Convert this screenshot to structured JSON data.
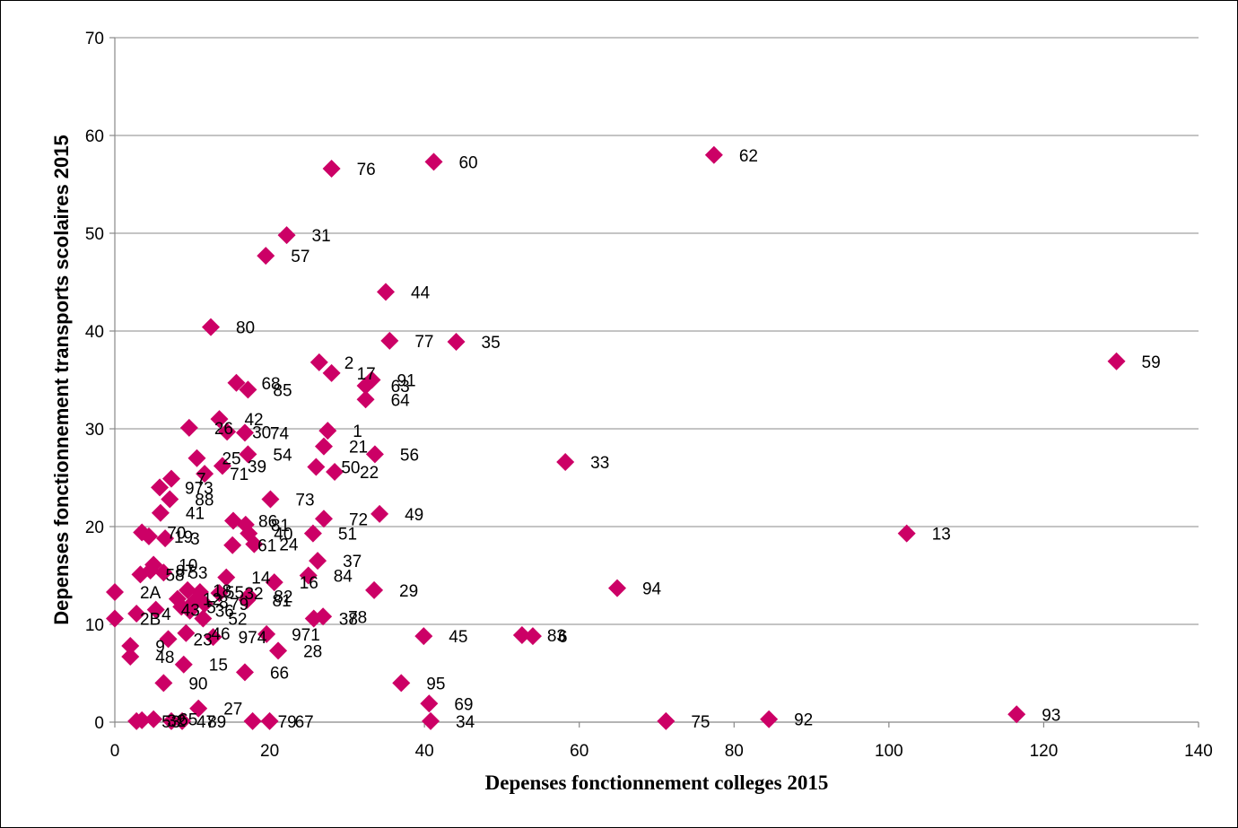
{
  "chart_data": {
    "type": "scatter",
    "xlabel": "Depenses fonctionnement colleges 2015",
    "ylabel": "Depenses fonctionnement transports scolaires 2015",
    "xlim": [
      0,
      140
    ],
    "ylim": [
      0,
      70
    ],
    "x_ticks": [
      0,
      20,
      40,
      60,
      80,
      100,
      120,
      140
    ],
    "y_ticks": [
      0,
      10,
      20,
      30,
      40,
      50,
      60,
      70
    ],
    "grid": "horizontal",
    "marker": "diamond",
    "marker_color": "#cc0066",
    "points": [
      {
        "label": "62",
        "x": 77.4,
        "y": 58.0
      },
      {
        "label": "60",
        "x": 41.2,
        "y": 57.3
      },
      {
        "label": "76",
        "x": 28.0,
        "y": 56.6
      },
      {
        "label": "31",
        "x": 22.2,
        "y": 49.8
      },
      {
        "label": "57",
        "x": 19.5,
        "y": 47.7
      },
      {
        "label": "44",
        "x": 35.0,
        "y": 44.0
      },
      {
        "label": "80",
        "x": 12.4,
        "y": 40.4
      },
      {
        "label": "77",
        "x": 35.5,
        "y": 39.0
      },
      {
        "label": "35",
        "x": 44.1,
        "y": 38.9
      },
      {
        "label": "59",
        "x": 129.4,
        "y": 36.9
      },
      {
        "label": "2",
        "x": 26.4,
        "y": 36.8
      },
      {
        "label": "17",
        "x": 28.0,
        "y": 35.7
      },
      {
        "label": "91",
        "x": 33.2,
        "y": 35.0
      },
      {
        "label": "63",
        "x": 32.4,
        "y": 34.4
      },
      {
        "label": "64",
        "x": 32.4,
        "y": 33.0
      },
      {
        "label": "68",
        "x": 15.7,
        "y": 34.7
      },
      {
        "label": "85",
        "x": 17.2,
        "y": 34.0
      },
      {
        "label": "42",
        "x": 13.5,
        "y": 31.0
      },
      {
        "label": "26",
        "x": 9.6,
        "y": 30.1
      },
      {
        "label": "30",
        "x": 14.5,
        "y": 29.7
      },
      {
        "label": "74",
        "x": 16.8,
        "y": 29.6
      },
      {
        "label": "1",
        "x": 27.5,
        "y": 29.8
      },
      {
        "label": "21",
        "x": 27.0,
        "y": 28.2
      },
      {
        "label": "56",
        "x": 33.6,
        "y": 27.4
      },
      {
        "label": "54",
        "x": 17.2,
        "y": 27.4
      },
      {
        "label": "33",
        "x": 58.2,
        "y": 26.6
      },
      {
        "label": "25",
        "x": 10.6,
        "y": 27.0
      },
      {
        "label": "39",
        "x": 13.9,
        "y": 26.2
      },
      {
        "label": "50",
        "x": 26.0,
        "y": 26.1
      },
      {
        "label": "22",
        "x": 28.4,
        "y": 25.6
      },
      {
        "label": "71",
        "x": 11.6,
        "y": 25.4
      },
      {
        "label": "7",
        "x": 7.3,
        "y": 24.9
      },
      {
        "label": "973",
        "x": 5.8,
        "y": 24.0
      },
      {
        "label": "88",
        "x": 7.1,
        "y": 22.8
      },
      {
        "label": "73",
        "x": 20.1,
        "y": 22.8
      },
      {
        "label": "41",
        "x": 5.9,
        "y": 21.4
      },
      {
        "label": "49",
        "x": 34.2,
        "y": 21.3
      },
      {
        "label": "72",
        "x": 27.0,
        "y": 20.8
      },
      {
        "label": "86",
        "x": 15.3,
        "y": 20.6
      },
      {
        "label": "81",
        "x": 16.9,
        "y": 20.2
      },
      {
        "label": "40",
        "x": 17.3,
        "y": 19.3
      },
      {
        "label": "51",
        "x": 25.6,
        "y": 19.3
      },
      {
        "label": "13",
        "x": 102.3,
        "y": 19.3
      },
      {
        "label": "70",
        "x": 3.5,
        "y": 19.4
      },
      {
        "label": "19",
        "x": 4.4,
        "y": 19.0
      },
      {
        "label": "3",
        "x": 6.5,
        "y": 18.8
      },
      {
        "label": "61",
        "x": 15.2,
        "y": 18.1
      },
      {
        "label": "24",
        "x": 18.0,
        "y": 18.2
      },
      {
        "label": "37",
        "x": 26.2,
        "y": 16.5
      },
      {
        "label": "10",
        "x": 5.0,
        "y": 16.1
      },
      {
        "label": "58",
        "x": 3.3,
        "y": 15.1
      },
      {
        "label": "87",
        "x": 4.6,
        "y": 15.5
      },
      {
        "label": "53",
        "x": 6.3,
        "y": 15.3
      },
      {
        "label": "84",
        "x": 25.0,
        "y": 15.0
      },
      {
        "label": "14",
        "x": 14.4,
        "y": 14.8
      },
      {
        "label": "16",
        "x": 20.6,
        "y": 14.3
      },
      {
        "label": "29",
        "x": 33.5,
        "y": 13.5
      },
      {
        "label": "94",
        "x": 64.9,
        "y": 13.7
      },
      {
        "label": "2A",
        "x": 0.0,
        "y": 13.3
      },
      {
        "label": "18",
        "x": 9.4,
        "y": 13.5
      },
      {
        "label": "12",
        "x": 8.1,
        "y": 12.6
      },
      {
        "label": "55",
        "x": 11.0,
        "y": 13.3
      },
      {
        "label": "32",
        "x": 13.5,
        "y": 13.2
      },
      {
        "label": "8",
        "x": 10.2,
        "y": 12.3
      },
      {
        "label": "79",
        "x": 11.6,
        "y": 12.1
      },
      {
        "label": "82",
        "x": 17.3,
        "y": 12.9
      },
      {
        "label": "81",
        "x": 17.1,
        "y": 12.5
      },
      {
        "label": "2B",
        "x": 0.0,
        "y": 10.6
      },
      {
        "label": "4",
        "x": 2.8,
        "y": 11.1
      },
      {
        "label": "43",
        "x": 5.3,
        "y": 11.5
      },
      {
        "label": "5",
        "x": 8.6,
        "y": 11.8
      },
      {
        "label": "36",
        "x": 9.7,
        "y": 11.4
      },
      {
        "label": "52",
        "x": 11.4,
        "y": 10.6
      },
      {
        "label": "38",
        "x": 25.7,
        "y": 10.6
      },
      {
        "label": "78",
        "x": 26.9,
        "y": 10.8
      },
      {
        "label": "971",
        "x": 19.6,
        "y": 9.0
      },
      {
        "label": "45",
        "x": 39.9,
        "y": 8.8
      },
      {
        "label": "83",
        "x": 52.6,
        "y": 8.9
      },
      {
        "label": "6",
        "x": 54.0,
        "y": 8.8
      },
      {
        "label": "46",
        "x": 9.2,
        "y": 9.1
      },
      {
        "label": "974",
        "x": 12.7,
        "y": 8.7
      },
      {
        "label": "23",
        "x": 6.9,
        "y": 8.5
      },
      {
        "label": "9",
        "x": 2.0,
        "y": 7.8
      },
      {
        "label": "28",
        "x": 21.1,
        "y": 7.3
      },
      {
        "label": "48",
        "x": 2.0,
        "y": 6.7
      },
      {
        "label": "15",
        "x": 8.9,
        "y": 5.9
      },
      {
        "label": "66",
        "x": 16.8,
        "y": 5.1
      },
      {
        "label": "90",
        "x": 6.3,
        "y": 4.0
      },
      {
        "label": "95",
        "x": 37.0,
        "y": 4.0
      },
      {
        "label": "69",
        "x": 40.6,
        "y": 1.9
      },
      {
        "label": "27",
        "x": 10.8,
        "y": 1.4
      },
      {
        "label": "93",
        "x": 116.5,
        "y": 0.8
      },
      {
        "label": "92",
        "x": 84.5,
        "y": 0.3
      },
      {
        "label": "75",
        "x": 71.2,
        "y": 0.1
      },
      {
        "label": "34",
        "x": 40.8,
        "y": 0.1
      },
      {
        "label": "79",
        "x": 17.8,
        "y": 0.1
      },
      {
        "label": "67",
        "x": 20.0,
        "y": 0.1
      },
      {
        "label": "53",
        "x": 2.8,
        "y": 0.1
      },
      {
        "label": "32",
        "x": 3.5,
        "y": 0.2
      },
      {
        "label": "65",
        "x": 5.0,
        "y": 0.3
      },
      {
        "label": "47",
        "x": 7.3,
        "y": 0.1
      },
      {
        "label": "89",
        "x": 8.7,
        "y": 0.1
      }
    ]
  }
}
